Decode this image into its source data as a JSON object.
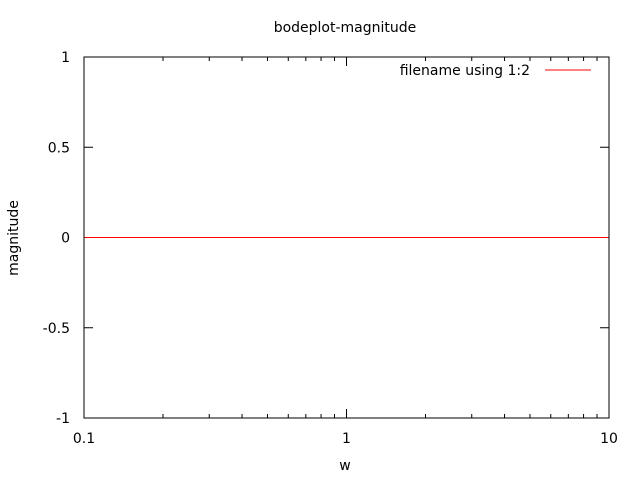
{
  "chart_data": {
    "type": "line",
    "title": "bodeplot-magnitude",
    "xlabel": "w",
    "ylabel": "magnitude",
    "x_scale": "log",
    "xlim": [
      0.1,
      10
    ],
    "ylim": [
      -1,
      1
    ],
    "x_ticks": [
      {
        "value": 0.1,
        "label": "0.1"
      },
      {
        "value": 1,
        "label": "1"
      },
      {
        "value": 10,
        "label": "10"
      }
    ],
    "y_ticks": [
      {
        "value": 1,
        "label": "1"
      },
      {
        "value": 0.5,
        "label": "0.5"
      },
      {
        "value": 0,
        "label": "0"
      },
      {
        "value": -0.5,
        "label": "-0.5"
      },
      {
        "value": -1,
        "label": "-1"
      }
    ],
    "grid": false,
    "legend_position": "top-right",
    "series": [
      {
        "name": "filename using 1:2",
        "color": "#ff0000",
        "x": [
          0.1,
          10
        ],
        "y": [
          0,
          0
        ]
      }
    ]
  }
}
